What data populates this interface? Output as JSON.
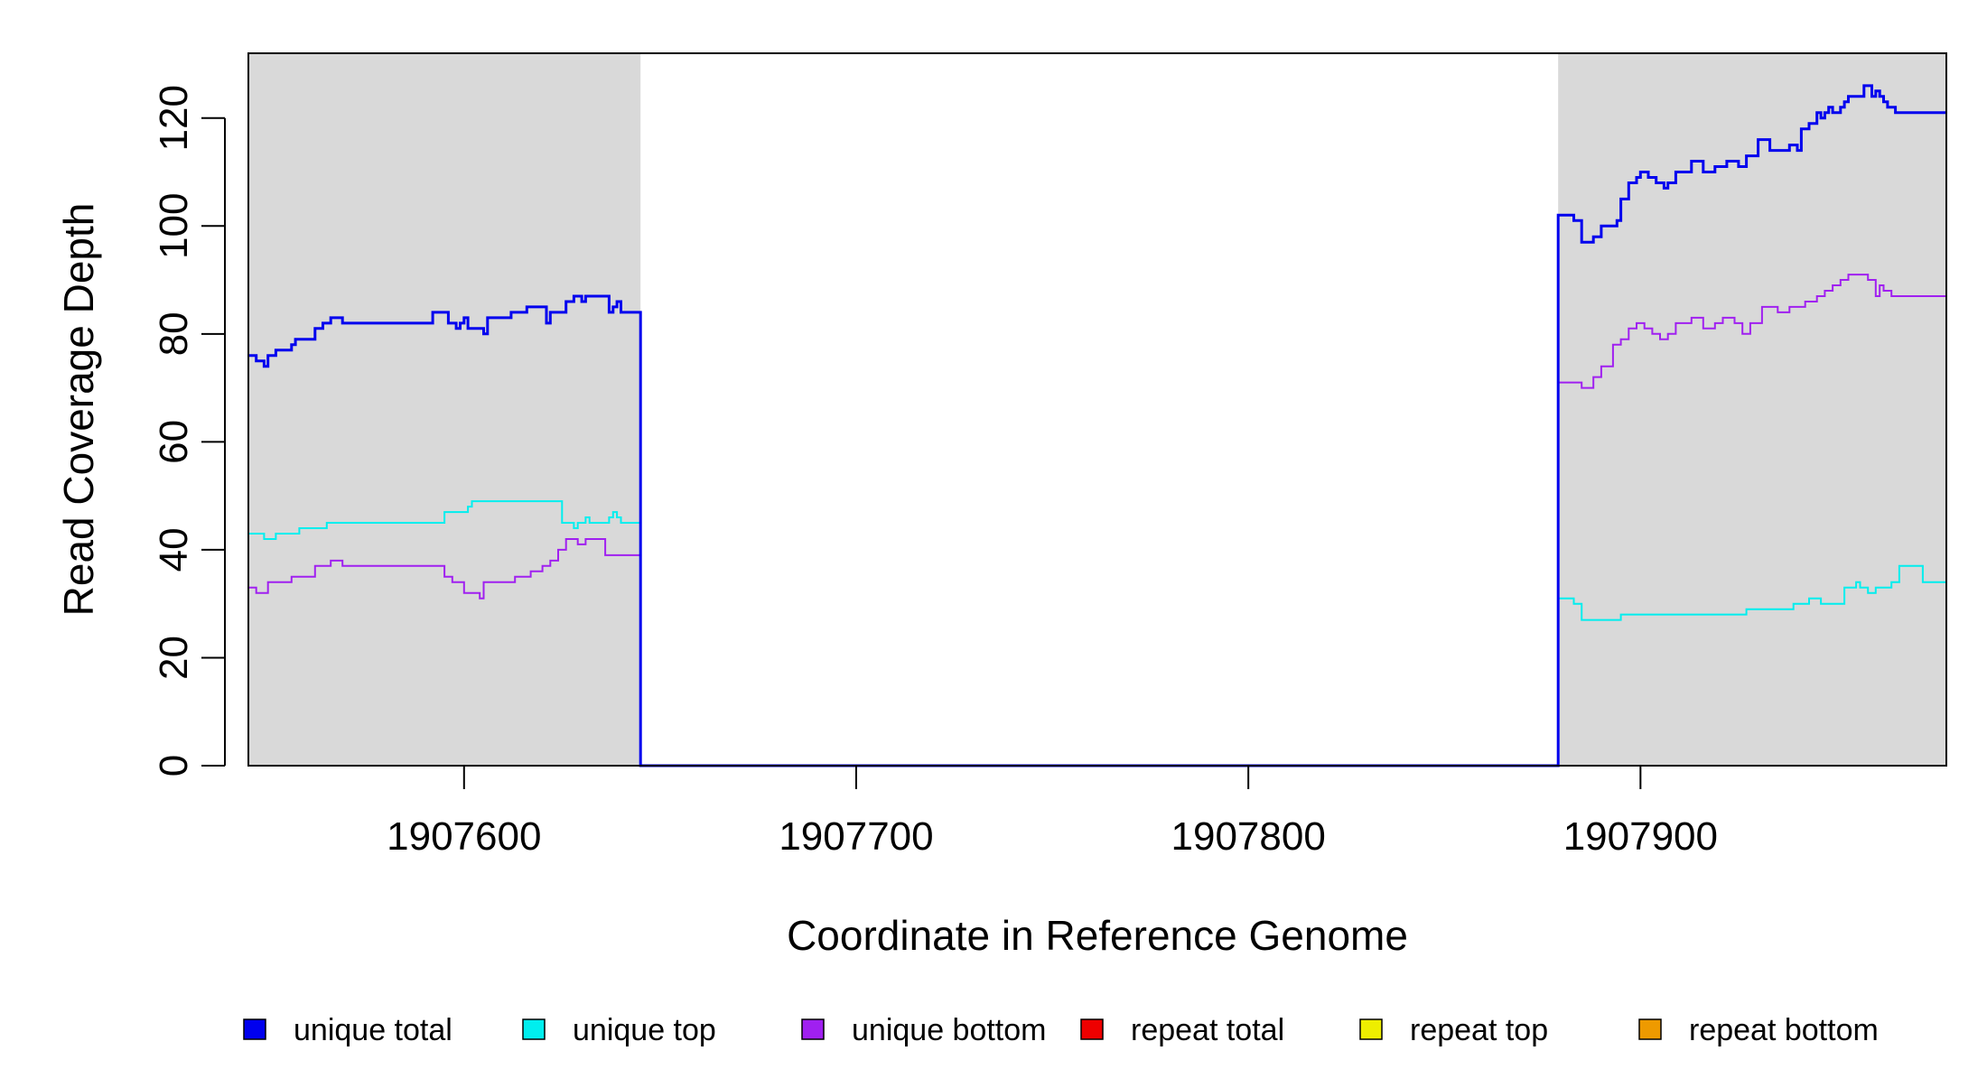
{
  "chart_data": {
    "type": "line",
    "title": "",
    "xlabel": "Coordinate in Reference Genome",
    "ylabel": "Read Coverage Depth",
    "xlim": [
      1907545,
      1907978
    ],
    "ylim": [
      0,
      132
    ],
    "x_ticks": [
      1907600,
      1907700,
      1907800,
      1907900
    ],
    "x_tick_labels": [
      "1907600",
      "1907700",
      "1907800",
      "1907900"
    ],
    "y_ticks": [
      0,
      20,
      40,
      60,
      80,
      100,
      120
    ],
    "y_tick_labels": [
      "0",
      "20",
      "40",
      "60",
      "80",
      "100",
      "120"
    ],
    "shaded_regions": [
      [
        1907545,
        1907645
      ],
      [
        1907879,
        1907978
      ]
    ],
    "shade_color": "#d9d9d9",
    "grid": false,
    "legend_position": "bottom",
    "series": [
      {
        "name": "unique total",
        "color": "#0000ee",
        "width": 3,
        "points": [
          [
            1907545,
            76
          ],
          [
            1907547,
            75
          ],
          [
            1907549,
            74
          ],
          [
            1907550,
            76
          ],
          [
            1907552,
            77
          ],
          [
            1907556,
            78
          ],
          [
            1907557,
            79
          ],
          [
            1907562,
            81
          ],
          [
            1907564,
            82
          ],
          [
            1907566,
            83
          ],
          [
            1907569,
            82
          ],
          [
            1907570,
            82
          ],
          [
            1907592,
            84
          ],
          [
            1907596,
            82
          ],
          [
            1907598,
            81
          ],
          [
            1907599,
            82
          ],
          [
            1907600,
            83
          ],
          [
            1907601,
            81
          ],
          [
            1907605,
            80
          ],
          [
            1907606,
            83
          ],
          [
            1907612,
            84
          ],
          [
            1907616,
            85
          ],
          [
            1907621,
            82
          ],
          [
            1907622,
            84
          ],
          [
            1907626,
            86
          ],
          [
            1907628,
            87
          ],
          [
            1907630,
            86
          ],
          [
            1907631,
            87
          ],
          [
            1907637,
            84
          ],
          [
            1907638,
            85
          ],
          [
            1907639,
            86
          ],
          [
            1907640,
            84
          ],
          [
            1907645,
            0
          ],
          [
            1907879,
            102
          ],
          [
            1907882,
            102
          ],
          [
            1907883,
            101
          ],
          [
            1907885,
            97
          ],
          [
            1907888,
            98
          ],
          [
            1907890,
            100
          ],
          [
            1907892,
            100
          ],
          [
            1907894,
            101
          ],
          [
            1907895,
            105
          ],
          [
            1907897,
            108
          ],
          [
            1907899,
            109
          ],
          [
            1907900,
            110
          ],
          [
            1907902,
            109
          ],
          [
            1907904,
            108
          ],
          [
            1907906,
            107
          ],
          [
            1907907,
            108
          ],
          [
            1907909,
            110
          ],
          [
            1907913,
            112
          ],
          [
            1907916,
            110
          ],
          [
            1907919,
            111
          ],
          [
            1907922,
            112
          ],
          [
            1907925,
            111
          ],
          [
            1907927,
            113
          ],
          [
            1907930,
            116
          ],
          [
            1907933,
            114
          ],
          [
            1907938,
            115
          ],
          [
            1907940,
            114
          ],
          [
            1907941,
            118
          ],
          [
            1907943,
            119
          ],
          [
            1907945,
            121
          ],
          [
            1907946,
            120
          ],
          [
            1907947,
            121
          ],
          [
            1907948,
            122
          ],
          [
            1907949,
            121
          ],
          [
            1907951,
            122
          ],
          [
            1907952,
            123
          ],
          [
            1907953,
            124
          ],
          [
            1907957,
            126
          ],
          [
            1907959,
            124
          ],
          [
            1907960,
            125
          ],
          [
            1907961,
            124
          ],
          [
            1907962,
            123
          ],
          [
            1907963,
            122
          ],
          [
            1907965,
            121
          ],
          [
            1907978,
            121
          ]
        ]
      },
      {
        "name": "unique top",
        "color": "#00eeee",
        "width": 2,
        "points": [
          [
            1907545,
            43
          ],
          [
            1907549,
            42
          ],
          [
            1907552,
            43
          ],
          [
            1907558,
            44
          ],
          [
            1907565,
            45
          ],
          [
            1907577,
            45
          ],
          [
            1907595,
            47
          ],
          [
            1907601,
            48
          ],
          [
            1907602,
            49
          ],
          [
            1907613,
            49
          ],
          [
            1907625,
            45
          ],
          [
            1907628,
            44
          ],
          [
            1907629,
            45
          ],
          [
            1907631,
            46
          ],
          [
            1907632,
            45
          ],
          [
            1907637,
            46
          ],
          [
            1907638,
            47
          ],
          [
            1907639,
            46
          ],
          [
            1907640,
            45
          ],
          [
            1907645,
            0
          ],
          [
            1907879,
            31
          ],
          [
            1907883,
            30
          ],
          [
            1907885,
            27
          ],
          [
            1907895,
            28
          ],
          [
            1907913,
            28
          ],
          [
            1907927,
            29
          ],
          [
            1907939,
            30
          ],
          [
            1907943,
            31
          ],
          [
            1907946,
            30
          ],
          [
            1907950,
            30
          ],
          [
            1907952,
            33
          ],
          [
            1907955,
            34
          ],
          [
            1907956,
            33
          ],
          [
            1907958,
            32
          ],
          [
            1907960,
            33
          ],
          [
            1907964,
            34
          ],
          [
            1907966,
            37
          ],
          [
            1907972,
            34
          ],
          [
            1907978,
            34
          ]
        ]
      },
      {
        "name": "unique bottom",
        "color": "#a020f0",
        "width": 2,
        "points": [
          [
            1907545,
            33
          ],
          [
            1907547,
            32
          ],
          [
            1907550,
            34
          ],
          [
            1907556,
            35
          ],
          [
            1907562,
            37
          ],
          [
            1907566,
            38
          ],
          [
            1907569,
            37
          ],
          [
            1907580,
            37
          ],
          [
            1907595,
            35
          ],
          [
            1907597,
            34
          ],
          [
            1907600,
            32
          ],
          [
            1907604,
            31
          ],
          [
            1907605,
            34
          ],
          [
            1907613,
            35
          ],
          [
            1907617,
            36
          ],
          [
            1907620,
            37
          ],
          [
            1907622,
            38
          ],
          [
            1907624,
            40
          ],
          [
            1907626,
            42
          ],
          [
            1907629,
            41
          ],
          [
            1907631,
            42
          ],
          [
            1907636,
            39
          ],
          [
            1907638,
            39
          ],
          [
            1907645,
            0
          ],
          [
            1907879,
            71
          ],
          [
            1907885,
            70
          ],
          [
            1907888,
            72
          ],
          [
            1907890,
            74
          ],
          [
            1907893,
            78
          ],
          [
            1907895,
            79
          ],
          [
            1907897,
            81
          ],
          [
            1907899,
            82
          ],
          [
            1907901,
            81
          ],
          [
            1907903,
            80
          ],
          [
            1907905,
            79
          ],
          [
            1907907,
            80
          ],
          [
            1907909,
            82
          ],
          [
            1907913,
            83
          ],
          [
            1907916,
            81
          ],
          [
            1907919,
            82
          ],
          [
            1907921,
            83
          ],
          [
            1907924,
            82
          ],
          [
            1907926,
            80
          ],
          [
            1907928,
            82
          ],
          [
            1907931,
            85
          ],
          [
            1907935,
            84
          ],
          [
            1907938,
            85
          ],
          [
            1907942,
            86
          ],
          [
            1907945,
            87
          ],
          [
            1907947,
            88
          ],
          [
            1907949,
            89
          ],
          [
            1907951,
            90
          ],
          [
            1907953,
            91
          ],
          [
            1907958,
            90
          ],
          [
            1907960,
            87
          ],
          [
            1907961,
            89
          ],
          [
            1907962,
            88
          ],
          [
            1907964,
            87
          ],
          [
            1907978,
            87
          ]
        ]
      },
      {
        "name": "repeat total",
        "color": "#ee0000",
        "width": 2,
        "points": [
          [
            1907545,
            0
          ],
          [
            1907978,
            0
          ]
        ]
      },
      {
        "name": "repeat top",
        "color": "#eeee00",
        "width": 2,
        "points": [
          [
            1907545,
            0
          ],
          [
            1907978,
            0
          ]
        ]
      },
      {
        "name": "repeat bottom",
        "color": "#ee9a00",
        "width": 2,
        "points": [
          [
            1907545,
            0
          ],
          [
            1907978,
            0
          ]
        ]
      }
    ]
  }
}
